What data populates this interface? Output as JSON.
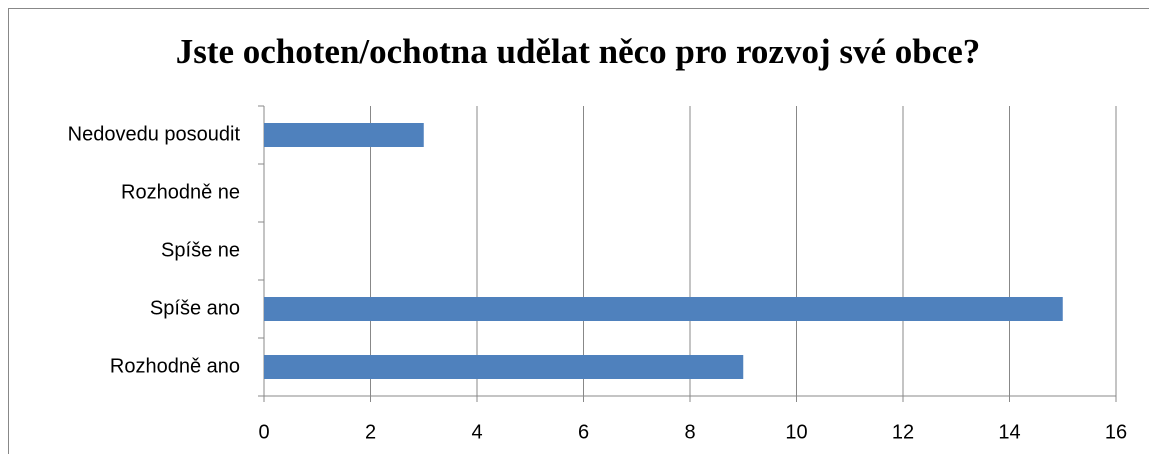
{
  "chart_data": {
    "type": "bar",
    "orientation": "horizontal",
    "title": "Jste ochoten/ochotna udělat něco pro rozvoj své obce?",
    "categories": [
      "Rozhodně ano",
      "Spíše ano",
      "Spíše ne",
      "Rozhodně ne",
      "Nedovedu posoudit"
    ],
    "values": [
      9,
      15,
      0,
      0,
      3
    ],
    "color": "#4f81bd",
    "xlim": [
      0,
      16
    ],
    "xticks": [
      0,
      2,
      4,
      6,
      8,
      10,
      12,
      14,
      16
    ],
    "grid": true
  }
}
